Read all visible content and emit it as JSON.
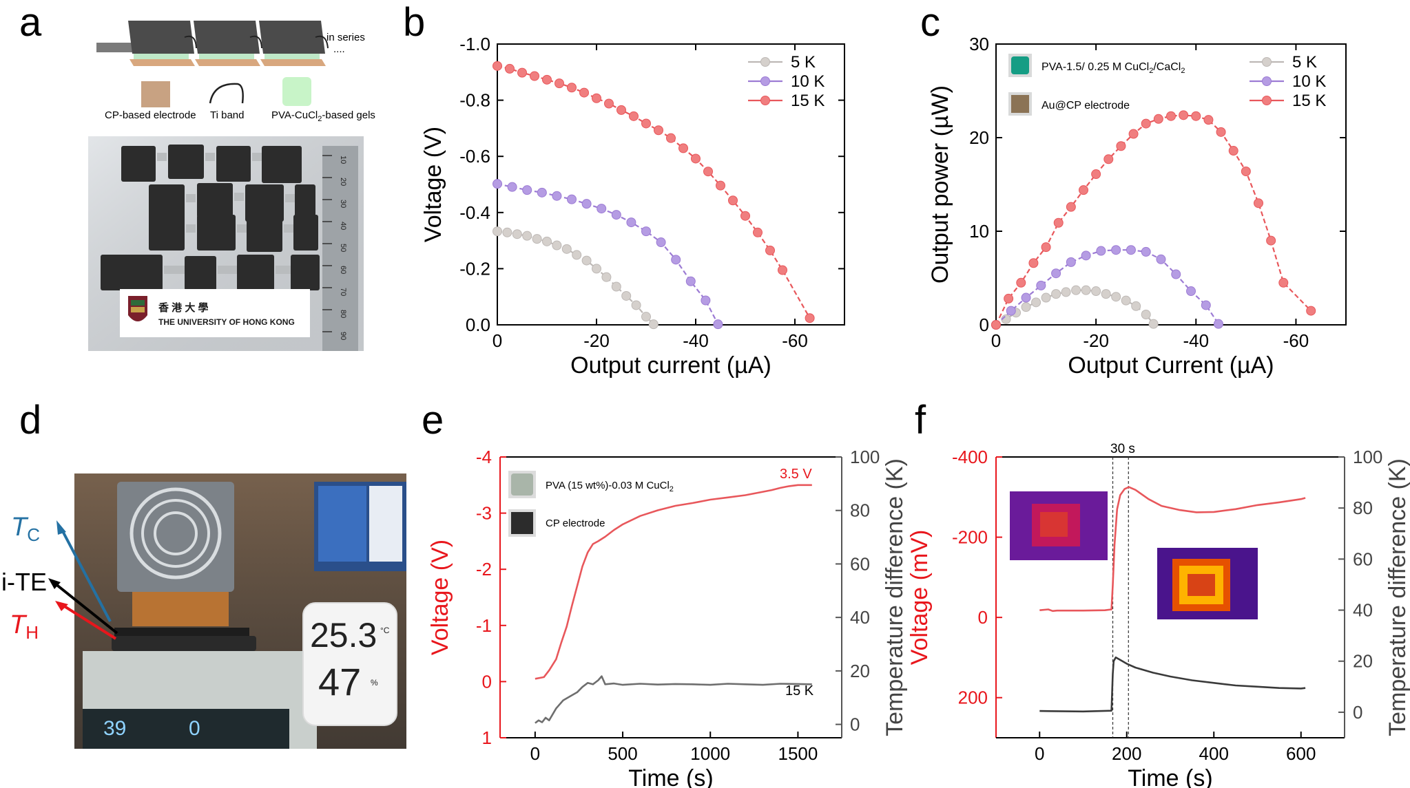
{
  "colors": {
    "red": "#e8575b",
    "red_marker": "#f07e7f",
    "purple": "#9c7bd4",
    "purple_marker": "#b59ce3",
    "grey": "#bdb8b5",
    "grey_marker": "#d5d0cc",
    "blue_arrow": "#2471a3",
    "dark": "#444444"
  },
  "panels": {
    "a": {
      "label": "a",
      "schematic_note": "in series",
      "schematic_dots": "....",
      "legend": {
        "electrode": "CP-based electrode",
        "band": "Ti band",
        "gel": "PVA-CuCl2-based gels",
        "gel_main": "PVA-CuCl",
        "gel_sub": "2",
        "gel_rest": "-based gels"
      },
      "photo_caption": {
        "chinese": "香 港 大 學",
        "english": "THE UNIVERSITY OF HONG KONG"
      },
      "ruler_marks": [
        "10",
        "20",
        "30",
        "40",
        "50",
        "60",
        "70",
        "80",
        "90"
      ]
    },
    "b": {
      "label": "b"
    },
    "c": {
      "label": "c",
      "inset_gel": {
        "main": "PVA-1.5/ 0.25 M CuCl",
        "sub": "2",
        "rest": "/CaCl",
        "sub2": "2"
      },
      "inset_electrode": "Au@CP electrode"
    },
    "d": {
      "label": "d",
      "tc": {
        "main": "T",
        "sub": "C"
      },
      "ite": "i-TE",
      "th": {
        "main": "T",
        "sub": "H"
      },
      "hygrometer": {
        "temp": "25.3",
        "temp_unit": "°C",
        "humidity": "47",
        "humidity_unit": "%"
      },
      "hotplate_display": [
        "39",
        "0"
      ]
    },
    "e": {
      "label": "e",
      "inset_gel": {
        "main": "PVA (15 wt%)-0.03 M CuCl",
        "sub": "2"
      },
      "inset_electrode": "CP electrode",
      "annot_voltage": "3.5 V",
      "annot_temp": "15 K"
    },
    "f": {
      "label": "f",
      "annot_time": "30 s"
    }
  },
  "chart_data": [
    {
      "id": "b",
      "type": "scatter",
      "xlabel": "Output current (µA)",
      "ylabel": "Voltage (V)",
      "xlim": [
        0,
        -70
      ],
      "ylim": [
        0,
        -1.0
      ],
      "xticks": [
        0,
        -20,
        -40,
        -60
      ],
      "yticks": [
        0.0,
        -0.2,
        -0.4,
        -0.6,
        -0.8,
        -1.0
      ],
      "ytick_labels": [
        "0.0",
        "-0.2",
        "-0.4",
        "-0.6",
        "-0.8",
        "-1.0"
      ],
      "legend_position": "top-right",
      "series": [
        {
          "name": "5 K",
          "color": "grey",
          "x": [
            0,
            -2,
            -4,
            -6,
            -8,
            -10,
            -12,
            -14,
            -16,
            -18,
            -20,
            -22,
            -24,
            -26,
            -28,
            -30,
            -31.5
          ],
          "y": [
            -0.333,
            -0.329,
            -0.323,
            -0.317,
            -0.306,
            -0.297,
            -0.283,
            -0.27,
            -0.249,
            -0.229,
            -0.2,
            -0.17,
            -0.136,
            -0.103,
            -0.07,
            -0.029,
            -0.002
          ]
        },
        {
          "name": "10 K",
          "color": "purple",
          "x": [
            0,
            -3,
            -6,
            -9,
            -12,
            -15,
            -18,
            -21,
            -24,
            -27,
            -30,
            -33,
            -36,
            -39,
            -42,
            -44.5
          ],
          "y": [
            -0.502,
            -0.491,
            -0.48,
            -0.471,
            -0.459,
            -0.447,
            -0.431,
            -0.414,
            -0.392,
            -0.365,
            -0.333,
            -0.294,
            -0.232,
            -0.155,
            -0.087,
            -0.002
          ]
        },
        {
          "name": "15 K",
          "color": "red",
          "x": [
            0,
            -2.5,
            -5,
            -7.5,
            -10,
            -12.5,
            -15,
            -17.5,
            -20,
            -22.5,
            -25,
            -27.5,
            -30,
            -32.5,
            -35,
            -37.5,
            -40,
            -42.5,
            -45,
            -47.5,
            -50,
            -52.5,
            -55,
            -57.5,
            -63
          ],
          "y": [
            -0.922,
            -0.912,
            -0.898,
            -0.886,
            -0.873,
            -0.86,
            -0.845,
            -0.827,
            -0.807,
            -0.788,
            -0.765,
            -0.743,
            -0.717,
            -0.693,
            -0.665,
            -0.629,
            -0.592,
            -0.546,
            -0.496,
            -0.443,
            -0.388,
            -0.329,
            -0.265,
            -0.195,
            -0.024
          ]
        }
      ]
    },
    {
      "id": "c",
      "type": "scatter",
      "xlabel": "Output Current (µA)",
      "ylabel": "Output power (µW)",
      "xlim": [
        0,
        -70
      ],
      "ylim": [
        0,
        30
      ],
      "xticks": [
        0,
        -20,
        -40,
        -60
      ],
      "yticks": [
        0,
        10,
        20,
        30
      ],
      "legend_position": "top-right",
      "series": [
        {
          "name": "5 K",
          "color": "grey",
          "x": [
            0,
            -2,
            -4,
            -6,
            -8,
            -10,
            -12,
            -14,
            -16,
            -18,
            -20,
            -22,
            -24,
            -26,
            -28,
            -30,
            -31.5
          ],
          "y": [
            0,
            0.6,
            1.3,
            1.9,
            2.4,
            2.9,
            3.3,
            3.5,
            3.7,
            3.7,
            3.6,
            3.3,
            3.0,
            2.6,
            2.0,
            1.1,
            0.1
          ]
        },
        {
          "name": "10 K",
          "color": "purple",
          "x": [
            0,
            -3,
            -6,
            -9,
            -12,
            -15,
            -18,
            -21,
            -24,
            -27,
            -30,
            -33,
            -36,
            -39,
            -42,
            -44.5
          ],
          "y": [
            0,
            1.5,
            2.9,
            4.2,
            5.5,
            6.7,
            7.4,
            7.9,
            8.0,
            8.0,
            7.8,
            7.0,
            5.4,
            3.6,
            2.1,
            0.1
          ]
        },
        {
          "name": "15 K",
          "color": "red",
          "x": [
            0,
            -2.5,
            -5,
            -7.5,
            -10,
            -12.5,
            -15,
            -17.5,
            -20,
            -22.5,
            -25,
            -27.5,
            -30,
            -32.5,
            -35,
            -37.5,
            -40,
            -42.5,
            -45,
            -47.5,
            -50,
            -52.5,
            -55,
            -57.5,
            -63
          ],
          "y": [
            0,
            2.8,
            4.5,
            6.6,
            8.3,
            10.9,
            12.6,
            14.4,
            16.1,
            17.7,
            19.1,
            20.4,
            21.5,
            22.0,
            22.3,
            22.4,
            22.3,
            21.9,
            20.6,
            18.6,
            16.4,
            13.0,
            9.0,
            4.5,
            1.5
          ]
        }
      ]
    },
    {
      "id": "e",
      "type": "line",
      "xlabel": "Time (s)",
      "ylabel": "Voltage (V)",
      "y2label": "Temperature difference (K)",
      "xlim": [
        -200,
        1750
      ],
      "ylim": [
        1,
        -4
      ],
      "y2lim": [
        -5,
        100
      ],
      "xticks": [
        0,
        500,
        1000,
        1500
      ],
      "yticks": [
        1,
        0,
        -1,
        -2,
        -3,
        -4
      ],
      "y2ticks": [
        0,
        20,
        40,
        60,
        80,
        100
      ],
      "series": [
        {
          "name": "Voltage",
          "axis": "left",
          "color": "red",
          "x": [
            0,
            50,
            80,
            120,
            150,
            180,
            210,
            240,
            270,
            300,
            330,
            360,
            400,
            450,
            500,
            600,
            700,
            800,
            900,
            1000,
            1100,
            1200,
            1300,
            1350,
            1400,
            1450,
            1500,
            1550,
            1580
          ],
          "y": [
            -0.05,
            -0.08,
            -0.2,
            -0.4,
            -0.7,
            -0.98,
            -1.35,
            -1.7,
            -2.05,
            -2.3,
            -2.45,
            -2.5,
            -2.58,
            -2.7,
            -2.8,
            -2.95,
            -3.05,
            -3.13,
            -3.18,
            -3.24,
            -3.28,
            -3.32,
            -3.38,
            -3.41,
            -3.45,
            -3.48,
            -3.5,
            -3.5,
            -3.5
          ]
        },
        {
          "name": "Temperature difference",
          "axis": "right",
          "color": "grey",
          "x": [
            0,
            20,
            40,
            60,
            80,
            120,
            160,
            200,
            240,
            270,
            300,
            330,
            360,
            380,
            400,
            450,
            500,
            600,
            700,
            800,
            900,
            1000,
            1100,
            1200,
            1300,
            1400,
            1500,
            1580
          ],
          "y": [
            0.5,
            1.5,
            0.8,
            2.5,
            1.5,
            6,
            9,
            10.5,
            12,
            14,
            15.5,
            15,
            16.5,
            18,
            15,
            15.3,
            14.8,
            15.2,
            14.9,
            15.1,
            15.0,
            14.8,
            15.2,
            15.0,
            14.8,
            15.2,
            15.1,
            15
          ]
        }
      ]
    },
    {
      "id": "f",
      "type": "line",
      "xlabel": "Time (s)",
      "ylabel": "Voltage (mV)",
      "y2label": "Temperature difference (K)",
      "xlim": [
        -100,
        700
      ],
      "ylim": [
        300,
        -400
      ],
      "y2lim": [
        -10,
        100
      ],
      "xticks": [
        0,
        200,
        400,
        600
      ],
      "yticks": [
        200,
        0,
        -200,
        -400
      ],
      "y2ticks": [
        0,
        20,
        40,
        60,
        80,
        100
      ],
      "reference_lines_x": [
        168,
        204
      ],
      "series": [
        {
          "name": "Voltage",
          "axis": "left",
          "color": "red",
          "x": [
            0,
            20,
            30,
            40,
            100,
            150,
            165,
            168,
            172,
            178,
            185,
            195,
            205,
            220,
            250,
            280,
            320,
            360,
            400,
            450,
            500,
            550,
            600,
            610
          ],
          "y": [
            -18,
            -20,
            -16,
            -17,
            -17,
            -18,
            -20,
            -80,
            -180,
            -270,
            -305,
            -320,
            -325,
            -318,
            -295,
            -278,
            -268,
            -262,
            -263,
            -270,
            -280,
            -287,
            -295,
            -298
          ]
        },
        {
          "name": "Temperature difference",
          "axis": "right",
          "color": "dark",
          "x": [
            0,
            100,
            165,
            168,
            170,
            175,
            185,
            200,
            220,
            260,
            300,
            350,
            400,
            450,
            500,
            550,
            600,
            610
          ],
          "y": [
            0.5,
            0.3,
            0.6,
            15,
            20,
            21.5,
            20.5,
            19,
            17.5,
            15.5,
            14,
            12.5,
            11.5,
            10.5,
            10,
            9.5,
            9.3,
            9.5
          ]
        }
      ]
    }
  ]
}
